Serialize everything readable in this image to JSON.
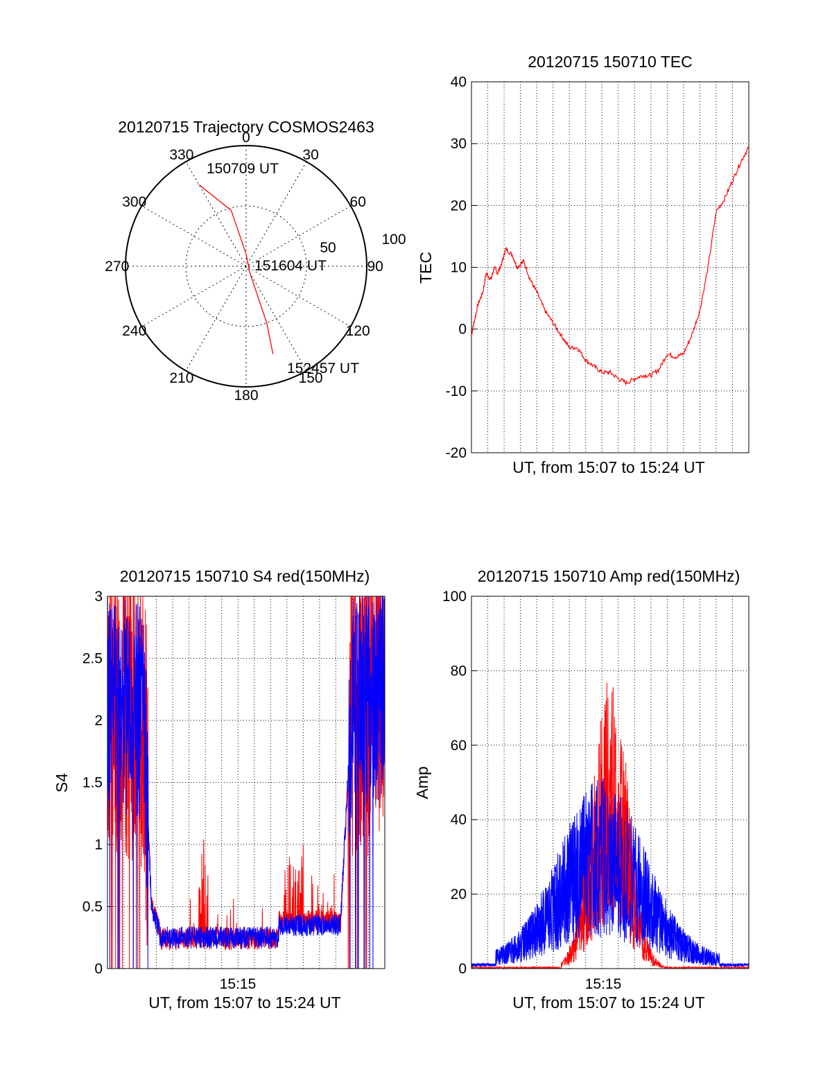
{
  "colors": {
    "red": "#ff0000",
    "blue": "#0000ff",
    "grid": "#000000"
  },
  "chart_data": [
    {
      "type": "polar",
      "title": "20120715 Trajectory COSMOS2463",
      "angle_labels": [
        "0",
        "30",
        "60",
        "90",
        "120",
        "150",
        "180",
        "210",
        "240",
        "270",
        "300",
        "330"
      ],
      "radial_labels": [
        "50",
        "100"
      ],
      "trajectory": [
        [
          330,
          78
        ],
        [
          345,
          48
        ],
        [
          360,
          10
        ],
        [
          150,
          6
        ],
        [
          160,
          50
        ],
        [
          163,
          76
        ]
      ],
      "point_labels": [
        "150709 UT",
        "151604 UT",
        "152457 UT"
      ]
    },
    {
      "type": "line",
      "title": "20120715 150710 TEC",
      "xlabel": "UT, from 15:07 to 15:24 UT",
      "ylabel": "TEC",
      "xlim": [
        0,
        17
      ],
      "ylim": [
        -20,
        40
      ],
      "yticks": [
        "-20",
        "-10",
        "0",
        "10",
        "20",
        "30",
        "40"
      ],
      "series": [
        {
          "color": "#ff0000",
          "x": [
            0,
            0.15,
            0.4,
            0.7,
            0.9,
            1.2,
            1.4,
            1.6,
            1.9,
            2.1,
            2.5,
            2.8,
            3.2,
            3.6,
            4.0,
            4.5,
            5.0,
            5.5,
            6.0,
            6.5,
            7.0,
            7.5,
            8.0,
            8.5,
            9.0,
            9.5,
            10.0,
            10.5,
            11.0,
            11.5,
            12.0,
            12.5,
            13.0,
            13.5,
            14.0,
            14.5,
            15.0,
            15.5,
            16.0,
            16.5,
            17
          ],
          "y": [
            -1,
            1,
            4,
            6,
            9,
            8,
            10,
            9,
            11,
            13,
            12,
            10,
            11,
            8,
            6,
            3,
            1,
            -1,
            -3,
            -3,
            -5,
            -6,
            -7,
            -7,
            -8,
            -8.7,
            -8,
            -7.5,
            -7.5,
            -6.5,
            -4,
            -4.5,
            -4,
            -1,
            3,
            10,
            19,
            21,
            24,
            27,
            29.5
          ]
        }
      ]
    },
    {
      "type": "line",
      "title": "20120715 150710 S4 red(150MHz)",
      "xlabel": "UT, from 15:07 to 15:24 UT",
      "ylabel": "S4",
      "xlim": [
        0,
        17
      ],
      "ylim": [
        0,
        3
      ],
      "yticks": [
        "0",
        "0.5",
        "1",
        "1.5",
        "2",
        "2.5",
        "3"
      ],
      "xtick_label": "15:15",
      "series": [
        {
          "name": "red",
          "color": "#ff0000"
        },
        {
          "name": "blue",
          "color": "#0000ff"
        }
      ]
    },
    {
      "type": "line",
      "title": "20120715 150710 Amp red(150MHz)",
      "xlabel": "UT, from 15:07 to 15:24 UT",
      "ylabel": "Amp",
      "xlim": [
        0,
        17
      ],
      "ylim": [
        0,
        100
      ],
      "yticks": [
        "0",
        "20",
        "40",
        "60",
        "80",
        "100"
      ],
      "xtick_label": "15:15",
      "series": [
        {
          "name": "red",
          "color": "#ff0000"
        },
        {
          "name": "blue",
          "color": "#0000ff"
        }
      ]
    }
  ]
}
